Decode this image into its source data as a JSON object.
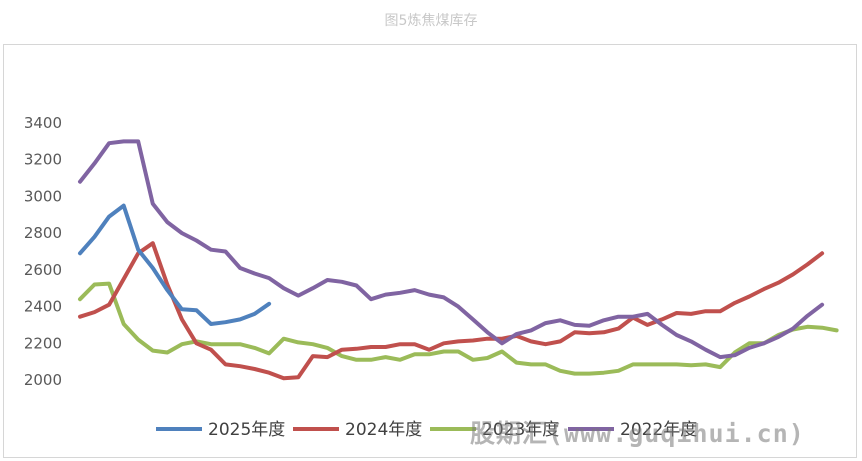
{
  "chart_data": {
    "type": "line",
    "title": "图5炼焦煤库存",
    "xlabel": "",
    "ylabel": "",
    "ylim": [
      2000,
      3400
    ],
    "yticks": [
      2000,
      2200,
      2400,
      2600,
      2800,
      3000,
      3200,
      3400
    ],
    "x_count": 53,
    "grid": false,
    "legend": "bottom",
    "series": [
      {
        "name": "2025年度",
        "color": "#4f81bd",
        "values": [
          2690,
          2780,
          2890,
          2950,
          2710,
          2610,
          2490,
          2385,
          2380,
          2305,
          2315,
          2330,
          2360,
          2415
        ]
      },
      {
        "name": "2024年度",
        "color": "#c0504d",
        "values": [
          2345,
          2370,
          2410,
          2550,
          2690,
          2745,
          2520,
          2330,
          2200,
          2165,
          2085,
          2075,
          2060,
          2040,
          2010,
          2015,
          2130,
          2125,
          2165,
          2170,
          2180,
          2180,
          2195,
          2195,
          2165,
          2200,
          2210,
          2215,
          2225,
          2225,
          2240,
          2210,
          2195,
          2210,
          2260,
          2255,
          2260,
          2280,
          2340,
          2300,
          2330,
          2365,
          2360,
          2375,
          2375,
          2420,
          2455,
          2495,
          2530,
          2575,
          2630,
          2690
        ]
      },
      {
        "name": "2023年度",
        "color": "#9bbb59",
        "values": [
          2440,
          2520,
          2525,
          2305,
          2220,
          2160,
          2150,
          2195,
          2210,
          2195,
          2195,
          2195,
          2175,
          2145,
          2225,
          2205,
          2195,
          2175,
          2130,
          2110,
          2110,
          2125,
          2110,
          2140,
          2140,
          2155,
          2155,
          2110,
          2120,
          2155,
          2095,
          2085,
          2085,
          2050,
          2035,
          2035,
          2040,
          2050,
          2085,
          2085,
          2085,
          2085,
          2080,
          2085,
          2070,
          2150,
          2200,
          2200,
          2245,
          2275,
          2290,
          2285,
          2270
        ]
      },
      {
        "name": "2022年度",
        "color": "#8064a2",
        "values": [
          3080,
          3180,
          3290,
          3300,
          3300,
          2960,
          2860,
          2800,
          2760,
          2710,
          2700,
          2610,
          2580,
          2555,
          2500,
          2460,
          2500,
          2545,
          2535,
          2515,
          2440,
          2465,
          2475,
          2490,
          2465,
          2450,
          2400,
          2330,
          2260,
          2200,
          2250,
          2270,
          2310,
          2325,
          2300,
          2295,
          2325,
          2345,
          2345,
          2360,
          2300,
          2245,
          2210,
          2165,
          2125,
          2135,
          2175,
          2200,
          2235,
          2280,
          2350,
          2410
        ]
      }
    ]
  },
  "watermark": "股期汇(www.guqihui.cn)"
}
